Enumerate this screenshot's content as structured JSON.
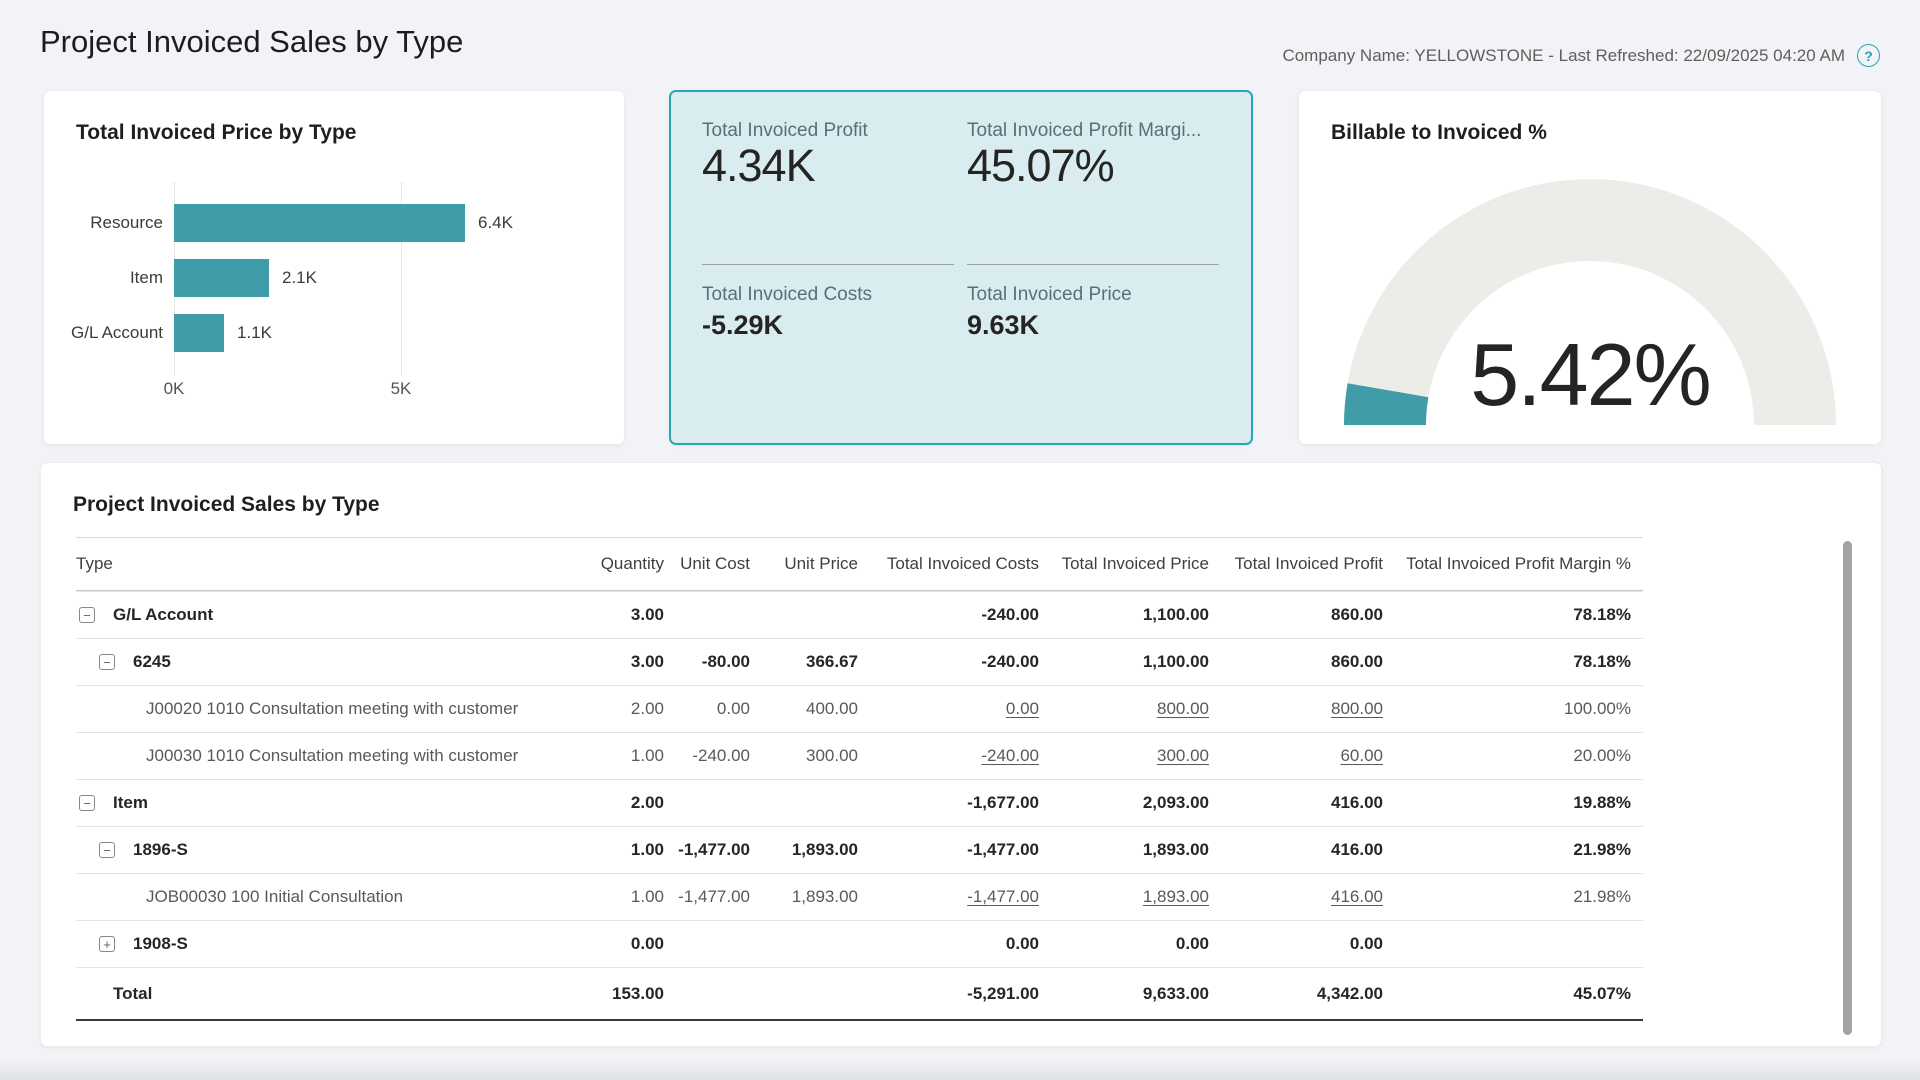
{
  "page": {
    "title": "Project Invoiced Sales by Type",
    "company_info": "Company Name: YELLOWSTONE - Last Refreshed: 22/09/2025 04:20 AM",
    "help_icon": "?"
  },
  "colors": {
    "accent_teal": "#3F9CA8",
    "kpi_card_bg": "#D9EDF1",
    "kpi_card_border": "#2BA6B2",
    "gauge_track": "#ECECE9"
  },
  "chart_data": [
    {
      "type": "bar",
      "title": "Total Invoiced Price by Type",
      "orientation": "horizontal",
      "categories": [
        "Resource",
        "Item",
        "G/L Account"
      ],
      "values": [
        6400,
        2100,
        1100
      ],
      "value_labels": [
        "6.4K",
        "2.1K",
        "1.1K"
      ],
      "x_ticks": [
        {
          "label": "0K",
          "value": 0
        },
        {
          "label": "5K",
          "value": 5000
        }
      ],
      "xlim": [
        0,
        6500
      ],
      "bar_color": "#3F9CA8",
      "grid": "dotted-vertical"
    },
    {
      "type": "kpi",
      "items": [
        {
          "label": "Total Invoiced Profit",
          "value": "4.34K"
        },
        {
          "label": "Total Invoiced Profit Margi...",
          "value": "45.07%"
        },
        {
          "label": "Total Invoiced Costs",
          "value": "-5.29K"
        },
        {
          "label": "Total Invoiced Price",
          "value": "9.63K"
        }
      ]
    },
    {
      "type": "gauge",
      "title": "Billable to Invoiced %",
      "value": 5.42,
      "value_label": "5.42%",
      "min": 0,
      "max": 100,
      "fill_color": "#3F9CA8",
      "track_color": "#ECECE9"
    }
  ],
  "table": {
    "title": "Project Invoiced Sales by Type",
    "columns": [
      "Type",
      "Quantity",
      "Unit Cost",
      "Unit Price",
      "Total Invoiced Costs",
      "Total Invoiced Price",
      "Total Invoiced Profit",
      "Total Invoiced Profit Margin %"
    ],
    "rows": [
      {
        "label": "G/L Account",
        "level": 0,
        "bold": true,
        "toggle": "minus",
        "qty": "3.00",
        "unit_cost": "",
        "unit_price": "",
        "tic": "-240.00",
        "tip": "1,100.00",
        "tiprofit": "860.00",
        "margin": "78.18%",
        "underline": false,
        "total": false
      },
      {
        "label": "6245",
        "level": 1,
        "bold": true,
        "toggle": "minus",
        "qty": "3.00",
        "unit_cost": "-80.00",
        "unit_price": "366.67",
        "tic": "-240.00",
        "tip": "1,100.00",
        "tiprofit": "860.00",
        "margin": "78.18%",
        "underline": false,
        "total": false
      },
      {
        "label": "J00020 1010 Consultation meeting with customer",
        "level": 2,
        "bold": false,
        "toggle": null,
        "qty": "2.00",
        "unit_cost": "0.00",
        "unit_price": "400.00",
        "tic": "0.00",
        "tip": "800.00",
        "tiprofit": "800.00",
        "margin": "100.00%",
        "underline": true,
        "total": false
      },
      {
        "label": "J00030 1010 Consultation meeting with customer",
        "level": 2,
        "bold": false,
        "toggle": null,
        "qty": "1.00",
        "unit_cost": "-240.00",
        "unit_price": "300.00",
        "tic": "-240.00",
        "tip": "300.00",
        "tiprofit": "60.00",
        "margin": "20.00%",
        "underline": true,
        "total": false
      },
      {
        "label": "Item",
        "level": 0,
        "bold": true,
        "toggle": "minus",
        "qty": "2.00",
        "unit_cost": "",
        "unit_price": "",
        "tic": "-1,677.00",
        "tip": "2,093.00",
        "tiprofit": "416.00",
        "margin": "19.88%",
        "underline": false,
        "total": false
      },
      {
        "label": "1896-S",
        "level": 1,
        "bold": true,
        "toggle": "minus",
        "qty": "1.00",
        "unit_cost": "-1,477.00",
        "unit_price": "1,893.00",
        "tic": "-1,477.00",
        "tip": "1,893.00",
        "tiprofit": "416.00",
        "margin": "21.98%",
        "underline": false,
        "total": false
      },
      {
        "label": "JOB00030 100 Initial Consultation",
        "level": 2,
        "bold": false,
        "toggle": null,
        "qty": "1.00",
        "unit_cost": "-1,477.00",
        "unit_price": "1,893.00",
        "tic": "-1,477.00",
        "tip": "1,893.00",
        "tiprofit": "416.00",
        "margin": "21.98%",
        "underline": true,
        "total": false
      },
      {
        "label": "1908-S",
        "level": 1,
        "bold": true,
        "toggle": "plus",
        "qty": "0.00",
        "unit_cost": "",
        "unit_price": "",
        "tic": "0.00",
        "tip": "0.00",
        "tiprofit": "0.00",
        "margin": "",
        "underline": false,
        "total": false
      },
      {
        "label": "Total",
        "level": 0,
        "bold": true,
        "toggle": null,
        "qty": "153.00",
        "unit_cost": "",
        "unit_price": "",
        "tic": "-5,291.00",
        "tip": "9,633.00",
        "tiprofit": "4,342.00",
        "margin": "45.07%",
        "underline": false,
        "total": true
      }
    ]
  }
}
